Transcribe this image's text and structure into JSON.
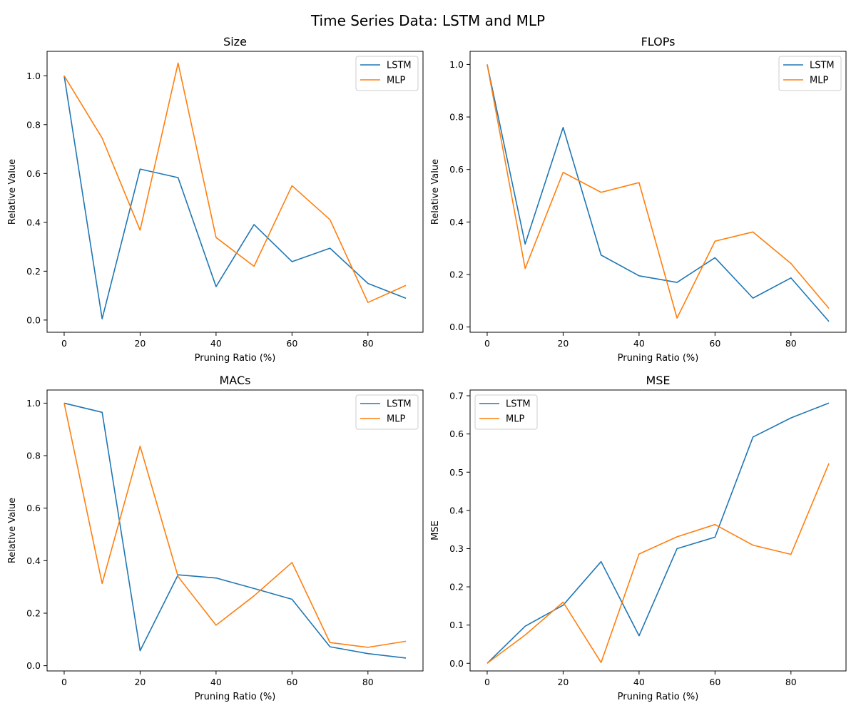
{
  "figure": {
    "title": "Time Series Data: LSTM and MLP"
  },
  "chart_data": [
    {
      "type": "line",
      "title": "Size",
      "xlabel": "Pruning Ratio (%)",
      "ylabel": "Relative Value",
      "xlim": [
        -4.5,
        94.5
      ],
      "ylim": [
        -0.05,
        1.1
      ],
      "xticks": [
        0,
        20,
        40,
        60,
        80
      ],
      "yticks": [
        0.0,
        0.2,
        0.4,
        0.6,
        0.8,
        1.0
      ],
      "ytick_decimals": 1,
      "legend": "upper right",
      "grid": false,
      "x": [
        0,
        10,
        20,
        30,
        40,
        50,
        60,
        70,
        80,
        90
      ],
      "series": [
        {
          "name": "LSTM",
          "color": "#1f77b4",
          "values": [
            1.0,
            0.005,
            0.618,
            0.583,
            0.137,
            0.391,
            0.239,
            0.294,
            0.15,
            0.089
          ]
        },
        {
          "name": "MLP",
          "color": "#ff7f0e",
          "values": [
            1.0,
            0.745,
            0.368,
            1.052,
            0.338,
            0.22,
            0.55,
            0.411,
            0.072,
            0.142
          ]
        }
      ]
    },
    {
      "type": "line",
      "title": "FLOPs",
      "xlabel": "Pruning Ratio (%)",
      "ylabel": "Relative Value",
      "xlim": [
        -4.5,
        94.5
      ],
      "ylim": [
        -0.02,
        1.05
      ],
      "xticks": [
        0,
        20,
        40,
        60,
        80
      ],
      "yticks": [
        0.0,
        0.2,
        0.4,
        0.6,
        0.8,
        1.0
      ],
      "ytick_decimals": 1,
      "legend": "upper right",
      "grid": false,
      "x": [
        0,
        10,
        20,
        30,
        40,
        50,
        60,
        70,
        80,
        90
      ],
      "series": [
        {
          "name": "LSTM",
          "color": "#1f77b4",
          "values": [
            1.0,
            0.316,
            0.76,
            0.274,
            0.195,
            0.17,
            0.264,
            0.11,
            0.187,
            0.021
          ]
        },
        {
          "name": "MLP",
          "color": "#ff7f0e",
          "values": [
            1.0,
            0.223,
            0.589,
            0.513,
            0.55,
            0.034,
            0.327,
            0.362,
            0.242,
            0.071
          ]
        }
      ]
    },
    {
      "type": "line",
      "title": "MACs",
      "xlabel": "Pruning Ratio (%)",
      "ylabel": "Relative Value",
      "xlim": [
        -4.5,
        94.5
      ],
      "ylim": [
        -0.02,
        1.05
      ],
      "xticks": [
        0,
        20,
        40,
        60,
        80
      ],
      "yticks": [
        0.0,
        0.2,
        0.4,
        0.6,
        0.8,
        1.0
      ],
      "ytick_decimals": 1,
      "legend": "upper right",
      "grid": false,
      "x": [
        0,
        10,
        20,
        30,
        40,
        50,
        60,
        70,
        80,
        90
      ],
      "series": [
        {
          "name": "LSTM",
          "color": "#1f77b4",
          "values": [
            1.0,
            0.965,
            0.057,
            0.346,
            0.334,
            0.294,
            0.253,
            0.072,
            0.046,
            0.029
          ]
        },
        {
          "name": "MLP",
          "color": "#ff7f0e",
          "values": [
            1.0,
            0.313,
            0.836,
            0.339,
            0.154,
            0.266,
            0.393,
            0.088,
            0.07,
            0.093
          ]
        }
      ]
    },
    {
      "type": "line",
      "title": "MSE",
      "xlabel": "Pruning Ratio (%)",
      "ylabel": "MSE",
      "xlim": [
        -4.5,
        94.5
      ],
      "ylim": [
        -0.02,
        0.715
      ],
      "xticks": [
        0,
        20,
        40,
        60,
        80
      ],
      "yticks": [
        0.0,
        0.1,
        0.2,
        0.3,
        0.4,
        0.5,
        0.6,
        0.7
      ],
      "ytick_decimals": 1,
      "legend": "upper left",
      "grid": false,
      "x": [
        0,
        10,
        20,
        30,
        40,
        50,
        60,
        70,
        80,
        90
      ],
      "series": [
        {
          "name": "LSTM",
          "color": "#1f77b4",
          "values": [
            0.0,
            0.097,
            0.152,
            0.266,
            0.072,
            0.3,
            0.33,
            0.592,
            0.642,
            0.681
          ]
        },
        {
          "name": "MLP",
          "color": "#ff7f0e",
          "values": [
            0.0,
            0.074,
            0.16,
            0.002,
            0.286,
            0.331,
            0.363,
            0.309,
            0.285,
            0.523
          ]
        }
      ]
    }
  ]
}
